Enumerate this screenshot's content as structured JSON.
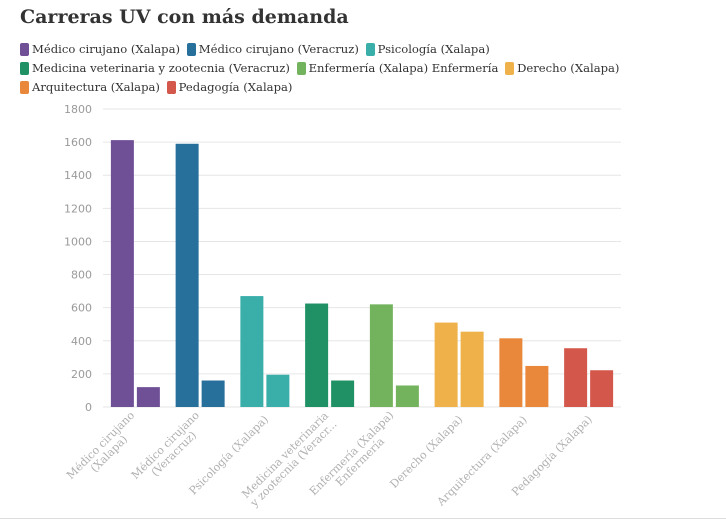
{
  "title": "Carreras UV con más demanda",
  "legend_rows": [
    [
      {
        "label": "Médico cirujano (Xalapa)",
        "color": "#6f4f96"
      },
      {
        "label": "Médico cirujano (Veracruz)",
        "color": "#27709b"
      },
      {
        "label": "Psicología (Xalapa)",
        "color": "#3aafaa"
      }
    ],
    [
      {
        "label": "Medicina veterinaria y zootecnia (Veracruz)",
        "color": "#1f9164"
      },
      {
        "label": "Enfermería (Xalapa) Enfermería",
        "color": "#74b35d"
      },
      {
        "label": "Derecho (Xalapa)",
        "color": "#efb24a"
      }
    ],
    [
      {
        "label": "Arquitectura (Xalapa)",
        "color": "#e9873a"
      },
      {
        "label": "Pedagogía (Xalapa)",
        "color": "#d3574b"
      }
    ]
  ],
  "chart_data": {
    "type": "bar",
    "title": "Carreras UV con más demanda",
    "xlabel": "",
    "ylabel": "",
    "ylim": [
      0,
      1800
    ],
    "yticks": [
      0,
      200,
      400,
      600,
      800,
      1000,
      1200,
      1400,
      1600,
      1800
    ],
    "grid": true,
    "legend_position": "top-left",
    "categories": [
      [
        "Médico cirujano",
        "(Xalapa)"
      ],
      [
        "Médico cirujano",
        "(Veracruz)"
      ],
      [
        "Psicología (Xalapa)"
      ],
      [
        "Medicina veterinaria",
        "y zootecnia (Veracr..."
      ],
      [
        "Enfermería (Xalapa)",
        "Enfermería"
      ],
      [
        "Derecho (Xalapa)"
      ],
      [
        "Arquitectura (Xalapa)"
      ],
      [
        "Pedagogía (Xalapa)"
      ]
    ],
    "colors": [
      "#6f4f96",
      "#27709b",
      "#3aafaa",
      "#1f9164",
      "#74b35d",
      "#efb24a",
      "#e9873a",
      "#d3574b"
    ],
    "groups": [
      [
        1612,
        120
      ],
      [
        1590,
        160
      ],
      [
        670,
        195
      ],
      [
        625,
        160
      ],
      [
        620,
        130
      ],
      [
        510,
        455
      ],
      [
        415,
        248
      ],
      [
        355,
        222
      ]
    ]
  }
}
